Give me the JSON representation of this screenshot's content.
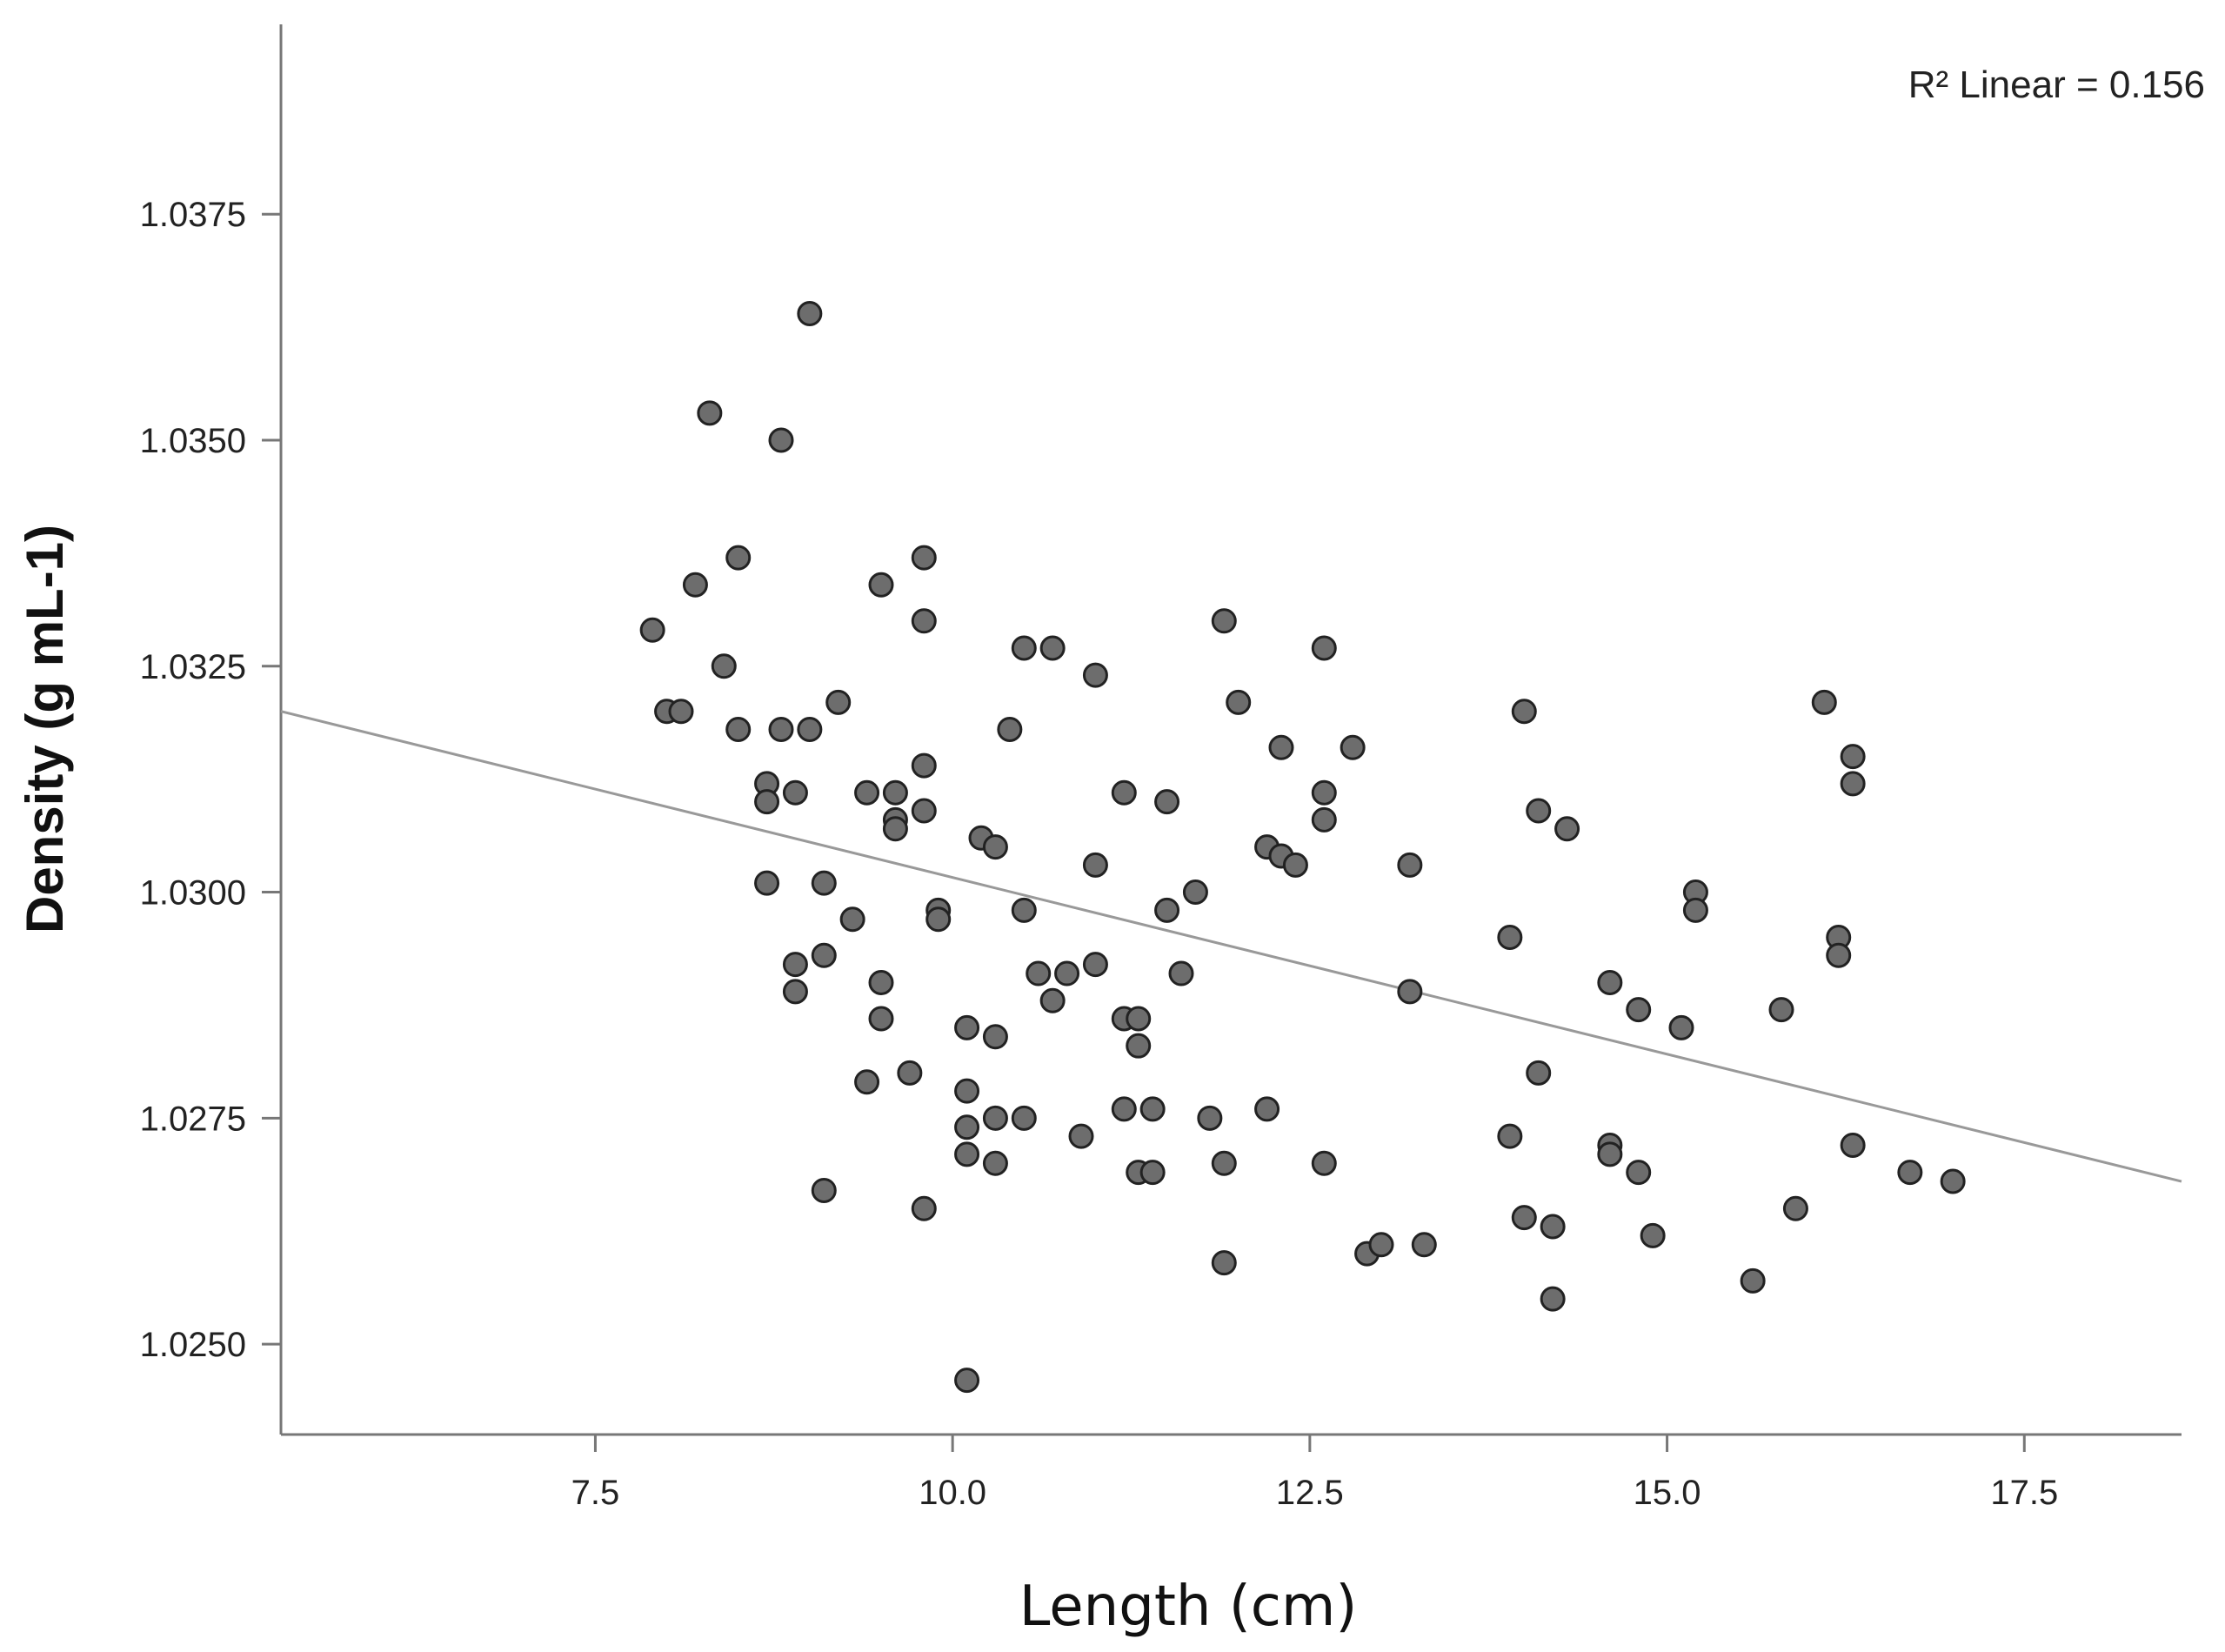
{
  "chart_data": {
    "type": "scatter",
    "title": "",
    "xlabel": "Length (cm)",
    "ylabel": "Density (g mL-1)",
    "xlim": [
      5.3,
      18.6
    ],
    "ylim": [
      1.024,
      1.0396
    ],
    "xticks": [
      7.5,
      10.0,
      12.5,
      15.0,
      17.5
    ],
    "xtick_labels": [
      "7.5",
      "10.0",
      "12.5",
      "15.0",
      "17.5"
    ],
    "yticks": [
      1.025,
      1.0275,
      1.03,
      1.0325,
      1.035,
      1.0375
    ],
    "ytick_labels": [
      "1.0250",
      "1.0275",
      "1.0300",
      "1.0325",
      "1.0350",
      "1.0375"
    ],
    "grid": false,
    "annotation": {
      "text": "R² Linear = 0.156"
    },
    "fit_line": {
      "x": [
        5.3,
        18.6
      ],
      "y": [
        1.032,
        1.0268
      ]
    },
    "colors": {
      "marker_fill": "#6d6d6d",
      "marker_edge": "#222222",
      "fit_line": "#999999",
      "axis": "#777777"
    },
    "points": [
      [
        7.9,
        1.0329
      ],
      [
        8.0,
        1.032
      ],
      [
        8.1,
        1.032
      ],
      [
        8.2,
        1.0334
      ],
      [
        8.3,
        1.0353
      ],
      [
        8.4,
        1.0325
      ],
      [
        8.5,
        1.0337
      ],
      [
        8.5,
        1.0318
      ],
      [
        8.7,
        1.0312
      ],
      [
        8.7,
        1.031
      ],
      [
        8.7,
        1.0301
      ],
      [
        8.8,
        1.0318
      ],
      [
        8.8,
        1.035
      ],
      [
        8.9,
        1.0311
      ],
      [
        8.9,
        1.0292
      ],
      [
        8.9,
        1.0289
      ],
      [
        9.0,
        1.0364
      ],
      [
        9.0,
        1.0318
      ],
      [
        9.1,
        1.0301
      ],
      [
        9.1,
        1.0293
      ],
      [
        9.1,
        1.0267
      ],
      [
        9.2,
        1.0321
      ],
      [
        9.3,
        1.0297
      ],
      [
        9.4,
        1.0311
      ],
      [
        9.4,
        1.0279
      ],
      [
        9.5,
        1.0334
      ],
      [
        9.5,
        1.029
      ],
      [
        9.5,
        1.0286
      ],
      [
        9.6,
        1.0311
      ],
      [
        9.6,
        1.0308
      ],
      [
        9.6,
        1.0307
      ],
      [
        9.7,
        1.028
      ],
      [
        9.8,
        1.0337
      ],
      [
        9.8,
        1.033
      ],
      [
        9.8,
        1.0314
      ],
      [
        9.8,
        1.0309
      ],
      [
        9.8,
        1.0265
      ],
      [
        9.9,
        1.0298
      ],
      [
        9.9,
        1.0297
      ],
      [
        10.1,
        1.0285
      ],
      [
        10.1,
        1.0278
      ],
      [
        10.1,
        1.0274
      ],
      [
        10.1,
        1.0271
      ],
      [
        10.1,
        1.0246
      ],
      [
        10.2,
        1.0306
      ],
      [
        10.3,
        1.0305
      ],
      [
        10.3,
        1.0284
      ],
      [
        10.3,
        1.0275
      ],
      [
        10.3,
        1.027
      ],
      [
        10.4,
        1.0318
      ],
      [
        10.5,
        1.0327
      ],
      [
        10.5,
        1.0298
      ],
      [
        10.5,
        1.0275
      ],
      [
        10.6,
        1.0291
      ],
      [
        10.7,
        1.0327
      ],
      [
        10.7,
        1.0288
      ],
      [
        10.8,
        1.0291
      ],
      [
        10.9,
        1.0273
      ],
      [
        11.0,
        1.0324
      ],
      [
        11.0,
        1.0303
      ],
      [
        11.0,
        1.0292
      ],
      [
        11.2,
        1.0311
      ],
      [
        11.2,
        1.0286
      ],
      [
        11.2,
        1.0276
      ],
      [
        11.3,
        1.0286
      ],
      [
        11.3,
        1.0283
      ],
      [
        11.3,
        1.0269
      ],
      [
        11.4,
        1.0276
      ],
      [
        11.4,
        1.0269
      ],
      [
        11.5,
        1.031
      ],
      [
        11.5,
        1.0298
      ],
      [
        11.6,
        1.0291
      ],
      [
        11.7,
        1.03
      ],
      [
        11.8,
        1.0275
      ],
      [
        11.9,
        1.033
      ],
      [
        11.9,
        1.027
      ],
      [
        11.9,
        1.0259
      ],
      [
        12.0,
        1.0321
      ],
      [
        12.2,
        1.0305
      ],
      [
        12.2,
        1.0276
      ],
      [
        12.3,
        1.0316
      ],
      [
        12.3,
        1.0304
      ],
      [
        12.4,
        1.0303
      ],
      [
        12.6,
        1.0327
      ],
      [
        12.6,
        1.0311
      ],
      [
        12.6,
        1.0308
      ],
      [
        12.6,
        1.027
      ],
      [
        12.8,
        1.0316
      ],
      [
        12.9,
        1.026
      ],
      [
        13.0,
        1.0261
      ],
      [
        13.2,
        1.0303
      ],
      [
        13.2,
        1.0289
      ],
      [
        13.3,
        1.0261
      ],
      [
        13.9,
        1.0295
      ],
      [
        13.9,
        1.0273
      ],
      [
        14.0,
        1.032
      ],
      [
        14.0,
        1.0264
      ],
      [
        14.1,
        1.0309
      ],
      [
        14.1,
        1.028
      ],
      [
        14.2,
        1.0263
      ],
      [
        14.2,
        1.0255
      ],
      [
        14.3,
        1.0307
      ],
      [
        14.6,
        1.029
      ],
      [
        14.6,
        1.0272
      ],
      [
        14.6,
        1.0271
      ],
      [
        14.8,
        1.0287
      ],
      [
        14.8,
        1.0269
      ],
      [
        14.9,
        1.0262
      ],
      [
        15.1,
        1.0285
      ],
      [
        15.2,
        1.03
      ],
      [
        15.2,
        1.0298
      ],
      [
        15.6,
        1.0257
      ],
      [
        15.8,
        1.0287
      ],
      [
        15.9,
        1.0265
      ],
      [
        16.1,
        1.0321
      ],
      [
        16.2,
        1.0295
      ],
      [
        16.2,
        1.0293
      ],
      [
        16.3,
        1.0315
      ],
      [
        16.3,
        1.0312
      ],
      [
        16.3,
        1.0272
      ],
      [
        16.7,
        1.0269
      ],
      [
        17.0,
        1.0268
      ]
    ]
  }
}
